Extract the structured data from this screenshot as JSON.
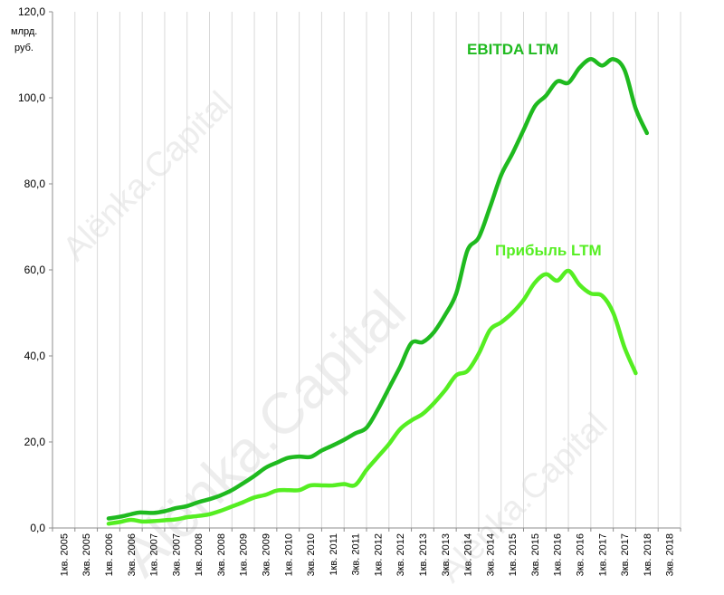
{
  "watermark": "Alënka.Capital",
  "chart_data": {
    "type": "line",
    "ylabel_line1": "млрд.",
    "ylabel_line2": "руб.",
    "ylim": [
      0,
      120
    ],
    "yticks": [
      "0,0",
      "20,0",
      "40,0",
      "60,0",
      "80,0",
      "100,0",
      "120,0"
    ],
    "categories": [
      "1кв. 2005",
      "3кв. 2005",
      "1кв. 2006",
      "3кв. 2006",
      "1кв. 2007",
      "3кв. 2007",
      "1кв. 2008",
      "3кв. 2008",
      "1кв. 2009",
      "3кв. 2009",
      "1кв. 2010",
      "3кв. 2010",
      "1кв. 2011",
      "3кв. 2011",
      "1кв. 2012",
      "3кв. 2012",
      "1кв. 2013",
      "3кв. 2013",
      "1кв. 2014",
      "3кв. 2014",
      "1кв. 2015",
      "3кв. 2015",
      "1кв. 2016",
      "3кв. 2016",
      "1кв. 2017",
      "3кв. 2017",
      "1кв. 2018",
      "3кв. 2018"
    ],
    "grid": "vertical",
    "series": [
      {
        "name": "EBITDA LTM",
        "color": "#1fba1f",
        "points": [
          [
            2,
            2.2
          ],
          [
            2.5,
            2.6
          ],
          [
            3,
            3.2
          ],
          [
            3.4,
            3.6
          ],
          [
            4,
            3.5
          ],
          [
            4.5,
            3.9
          ],
          [
            5,
            4.6
          ],
          [
            5.5,
            5.1
          ],
          [
            6,
            6.0
          ],
          [
            6.5,
            6.7
          ],
          [
            7,
            7.6
          ],
          [
            7.5,
            8.8
          ],
          [
            8,
            10.4
          ],
          [
            8.5,
            12.1
          ],
          [
            9,
            14.0
          ],
          [
            9.5,
            15.2
          ],
          [
            10,
            16.3
          ],
          [
            10.5,
            16.6
          ],
          [
            11,
            16.5
          ],
          [
            11.5,
            18.0
          ],
          [
            12,
            19.2
          ],
          [
            12.5,
            20.5
          ],
          [
            13,
            22.0
          ],
          [
            13.5,
            23.3
          ],
          [
            14,
            27.5
          ],
          [
            14.5,
            32.5
          ],
          [
            15,
            37.5
          ],
          [
            15.5,
            43.0
          ],
          [
            16,
            43.2
          ],
          [
            16.5,
            45.5
          ],
          [
            17,
            49.5
          ],
          [
            17.5,
            54.5
          ],
          [
            18,
            64.5
          ],
          [
            18.5,
            67.5
          ],
          [
            19,
            74.5
          ],
          [
            19.5,
            82.0
          ],
          [
            20,
            87.0
          ],
          [
            20.5,
            92.5
          ],
          [
            21,
            98.0
          ],
          [
            21.5,
            100.5
          ],
          [
            22,
            103.8
          ],
          [
            22.5,
            103.5
          ],
          [
            23,
            107.0
          ],
          [
            23.5,
            109.0
          ],
          [
            24,
            107.5
          ],
          [
            24.5,
            109.0
          ],
          [
            25,
            106.5
          ],
          [
            25.5,
            97.5
          ],
          [
            26,
            91.8
          ]
        ]
      },
      {
        "name": "Прибыль LTM",
        "color": "#55ee22",
        "points": [
          [
            2,
            1.0
          ],
          [
            2.5,
            1.4
          ],
          [
            3,
            1.9
          ],
          [
            3.5,
            1.5
          ],
          [
            4,
            1.6
          ],
          [
            4.5,
            1.8
          ],
          [
            5,
            2.0
          ],
          [
            5.5,
            2.5
          ],
          [
            6,
            2.8
          ],
          [
            6.5,
            3.2
          ],
          [
            7,
            4.0
          ],
          [
            7.5,
            5.0
          ],
          [
            8,
            6.0
          ],
          [
            8.5,
            7.1
          ],
          [
            9,
            7.7
          ],
          [
            9.5,
            8.7
          ],
          [
            10,
            8.8
          ],
          [
            10.5,
            8.8
          ],
          [
            11,
            9.9
          ],
          [
            11.5,
            9.9
          ],
          [
            12,
            9.9
          ],
          [
            12.5,
            10.2
          ],
          [
            13,
            10.0
          ],
          [
            13.5,
            13.5
          ],
          [
            14,
            16.5
          ],
          [
            14.5,
            19.5
          ],
          [
            15,
            23.0
          ],
          [
            15.5,
            25.0
          ],
          [
            16,
            26.5
          ],
          [
            16.5,
            29.0
          ],
          [
            17,
            32.0
          ],
          [
            17.5,
            35.5
          ],
          [
            18,
            36.5
          ],
          [
            18.5,
            40.5
          ],
          [
            19,
            46.0
          ],
          [
            19.5,
            47.8
          ],
          [
            20,
            50.0
          ],
          [
            20.5,
            53.0
          ],
          [
            21,
            57.0
          ],
          [
            21.5,
            59.0
          ],
          [
            22,
            57.5
          ],
          [
            22.5,
            59.8
          ],
          [
            23,
            56.5
          ],
          [
            23.5,
            54.5
          ],
          [
            24,
            54.0
          ],
          [
            24.5,
            50.0
          ],
          [
            25,
            42.0
          ],
          [
            25.5,
            36.0
          ]
        ]
      }
    ]
  }
}
